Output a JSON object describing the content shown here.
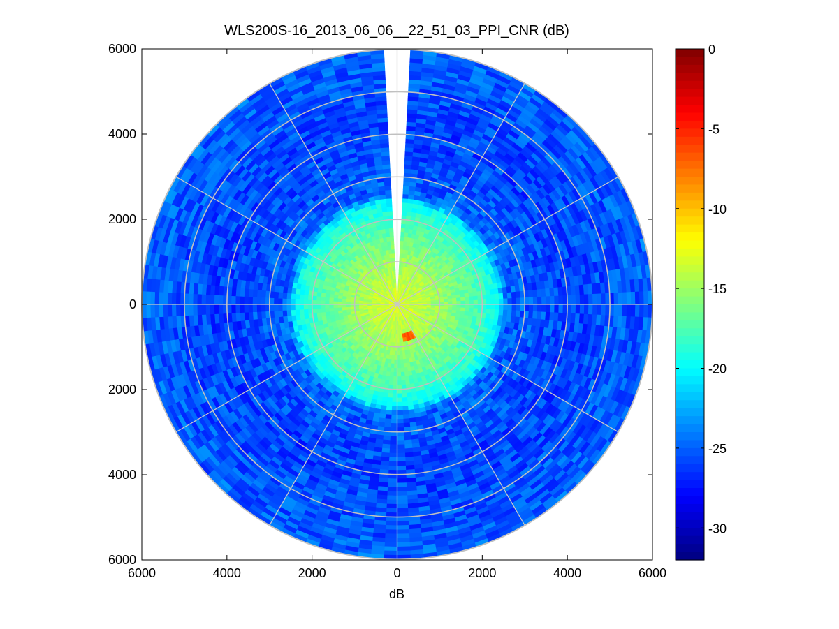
{
  "chart_data": {
    "type": "heatmap",
    "title": "WLS200S-16_2013_06_06__22_51_03_PPI_CNR (dB)",
    "xlabel": "dB",
    "ylabel": "",
    "x_ticks": [
      "6000",
      "4000",
      "2000",
      "0",
      "2000",
      "4000",
      "6000"
    ],
    "y_ticks": [
      "6000",
      "4000",
      "2000",
      "0",
      "2000",
      "4000",
      "6000"
    ],
    "xlim": [
      -6000,
      6000
    ],
    "ylim": [
      -6000,
      6000
    ],
    "max_range": 6000,
    "range_rings": [
      1000,
      2000,
      3000,
      4000,
      5000,
      6000
    ],
    "spokes_deg": [
      0,
      30,
      60,
      90,
      120,
      150,
      180,
      210,
      240,
      270,
      300,
      330
    ],
    "missing_sector_deg": [
      -4,
      4
    ],
    "grid": true,
    "colorbar": {
      "label": "dB",
      "min": -32,
      "max": 0,
      "ticks": [
        "0",
        "-5",
        "-10",
        "-15",
        "-20",
        "-25",
        "-30"
      ],
      "tick_values": [
        0,
        -5,
        -10,
        -15,
        -20,
        -25,
        -30
      ],
      "colormap": "jet"
    },
    "cnr_profile": [
      {
        "range_m": 0,
        "cnr_db": -13
      },
      {
        "range_m": 1000,
        "cnr_db": -15
      },
      {
        "range_m": 2000,
        "cnr_db": -18
      },
      {
        "range_m": 2400,
        "cnr_db": -20
      },
      {
        "range_m": 2600,
        "cnr_db": -25
      },
      {
        "range_m": 4000,
        "cnr_db": -26
      },
      {
        "range_m": 6000,
        "cnr_db": -25
      }
    ],
    "hotspot": {
      "range_m": 800,
      "azimuth_deg": 160,
      "cnr_db": -7
    }
  }
}
